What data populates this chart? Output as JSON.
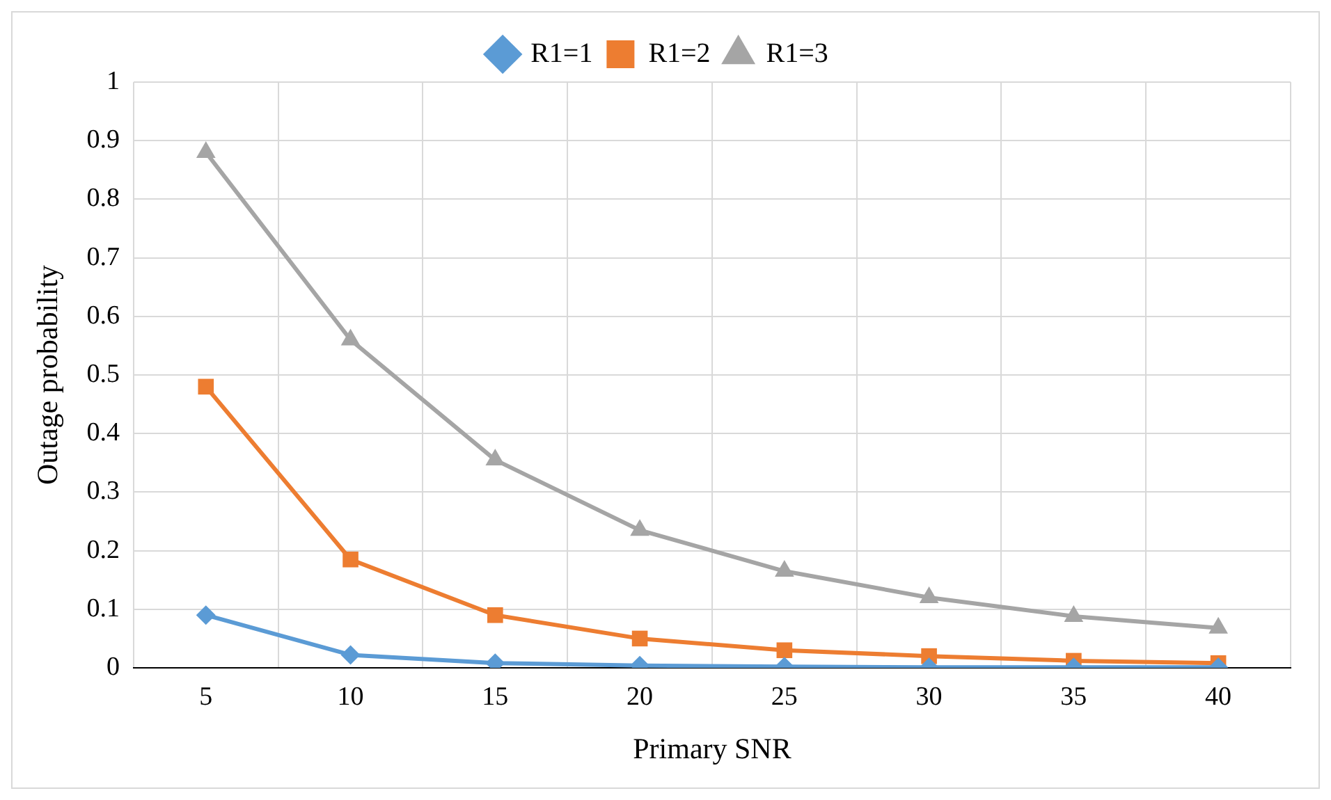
{
  "chart_data": {
    "type": "line",
    "xlabel": "Primary SNR",
    "ylabel": "Outage probability",
    "categories": [
      "5",
      "10",
      "15",
      "20",
      "25",
      "30",
      "35",
      "40"
    ],
    "ylim": [
      0,
      1
    ],
    "yticks": [
      0,
      0.1,
      0.2,
      0.3,
      0.4,
      0.5,
      0.6,
      0.7,
      0.8,
      0.9,
      1
    ],
    "grid": true,
    "legend": "top",
    "line_style": "solid",
    "series": [
      {
        "name": "R1=1",
        "color": "#5b9bd5",
        "marker": "diamond",
        "values": [
          0.09,
          0.022,
          0.008,
          0.004,
          0.002,
          0.001,
          0.001,
          0.001
        ]
      },
      {
        "name": "R1=2",
        "color": "#ed7d31",
        "marker": "square",
        "values": [
          0.48,
          0.185,
          0.09,
          0.05,
          0.03,
          0.02,
          0.012,
          0.008
        ]
      },
      {
        "name": "R1=3",
        "color": "#a5a5a5",
        "marker": "triangle",
        "values": [
          0.88,
          0.56,
          0.355,
          0.235,
          0.165,
          0.12,
          0.088,
          0.068
        ]
      }
    ]
  }
}
